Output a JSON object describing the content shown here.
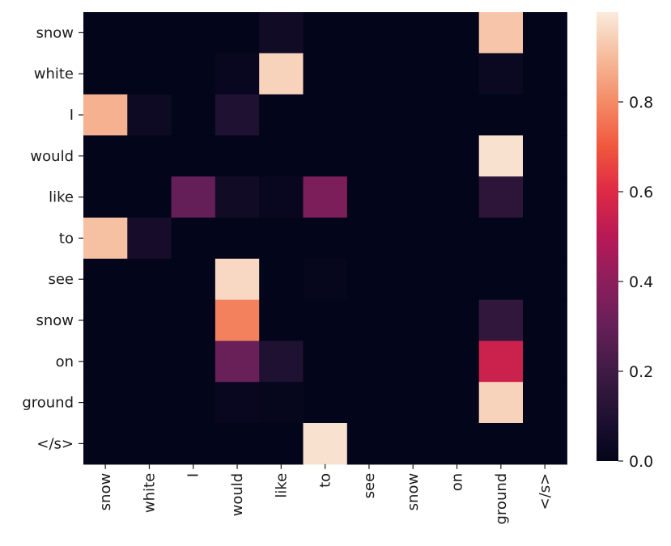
{
  "chart_data": {
    "type": "heatmap",
    "title": "",
    "xlabel": "",
    "ylabel": "",
    "x_labels": [
      "snow",
      "white",
      "I",
      "would",
      "like",
      "to",
      "see",
      "snow",
      "on",
      "ground",
      "</s>"
    ],
    "y_labels": [
      "snow",
      "white",
      "I",
      "would",
      "like",
      "to",
      "see",
      "snow",
      "on",
      "ground",
      "</s>"
    ],
    "values": [
      [
        0.0,
        0.0,
        0.0,
        0.0,
        0.05,
        0.0,
        0.0,
        0.0,
        0.0,
        0.92,
        0.0
      ],
      [
        0.0,
        0.0,
        0.0,
        0.02,
        0.95,
        0.0,
        0.0,
        0.0,
        0.0,
        0.03,
        0.0
      ],
      [
        0.88,
        0.04,
        0.0,
        0.1,
        0.0,
        0.0,
        0.0,
        0.0,
        0.0,
        0.0,
        0.0
      ],
      [
        0.0,
        0.0,
        0.0,
        0.0,
        0.0,
        0.0,
        0.0,
        0.0,
        0.0,
        0.98,
        0.0
      ],
      [
        0.0,
        0.0,
        0.3,
        0.05,
        0.02,
        0.36,
        0.0,
        0.0,
        0.0,
        0.14,
        0.0
      ],
      [
        0.91,
        0.07,
        0.0,
        0.0,
        0.0,
        0.0,
        0.0,
        0.0,
        0.0,
        0.0,
        0.0
      ],
      [
        0.0,
        0.0,
        0.0,
        0.96,
        0.0,
        0.01,
        0.0,
        0.0,
        0.0,
        0.0,
        0.0
      ],
      [
        0.0,
        0.0,
        0.0,
        0.78,
        0.0,
        0.0,
        0.0,
        0.0,
        0.0,
        0.16,
        0.0
      ],
      [
        0.0,
        0.0,
        0.0,
        0.31,
        0.1,
        0.0,
        0.0,
        0.0,
        0.0,
        0.55,
        0.0
      ],
      [
        0.0,
        0.0,
        0.0,
        0.02,
        0.01,
        0.0,
        0.0,
        0.0,
        0.0,
        0.95,
        0.0
      ],
      [
        0.0,
        0.0,
        0.0,
        0.0,
        0.0,
        0.98,
        0.0,
        0.0,
        0.0,
        0.0,
        0.0
      ]
    ],
    "colorbar": {
      "min": 0.0,
      "max": 1.0,
      "ticks": [
        0.0,
        0.2,
        0.4,
        0.6,
        0.8
      ],
      "tick_labels": [
        "0.0",
        "0.2",
        "0.4",
        "0.6",
        "0.8"
      ],
      "colormap": "rocket"
    },
    "grid": false,
    "legend": "colorbar-right"
  }
}
